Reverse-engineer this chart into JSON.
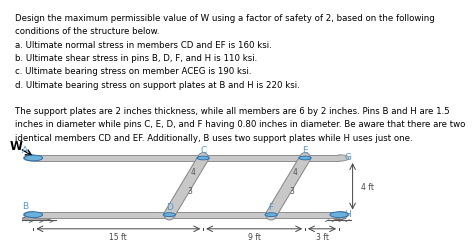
{
  "text_block": [
    "Design the maximum permissible value of W using a factor of safety of 2, based on the following",
    "conditions of the structure below.",
    "a. Ultimate normal stress in members CD and EF is 160 ksi.",
    "b. Ultimate shear stress in pins B, D, F, and H is 110 ksi.",
    "c. Ultimate bearing stress on member ACEG is 190 ksi.",
    "d. Ultimate bearing stress on support plates at B and H is 220 ksi.",
    "",
    "The support plates are 2 inches thickness, while all members are 6 by 2 inches. Pins B and H are 1.5",
    "inches in diameter while pins C, E, D, and F having 0.80 inches in diameter. Be aware that there are two",
    "identical members CD and EF. Additionally, B uses two support plates while H uses just one."
  ],
  "bg_color": "#ffffff",
  "text_color": "#000000",
  "member_color": "#c8c8c8",
  "member_edge": "#888888",
  "pin_color": "#6ab0d8",
  "pin_edge": "#2266aa",
  "label_color": "#5599cc",
  "dim_color": "#444444",
  "support_color": "#aaaaaa",
  "font_size_text": 6.2,
  "font_size_label": 6.5,
  "font_size_dim": 5.5,
  "font_size_slope": 5.5,
  "font_size_W": 8.5
}
